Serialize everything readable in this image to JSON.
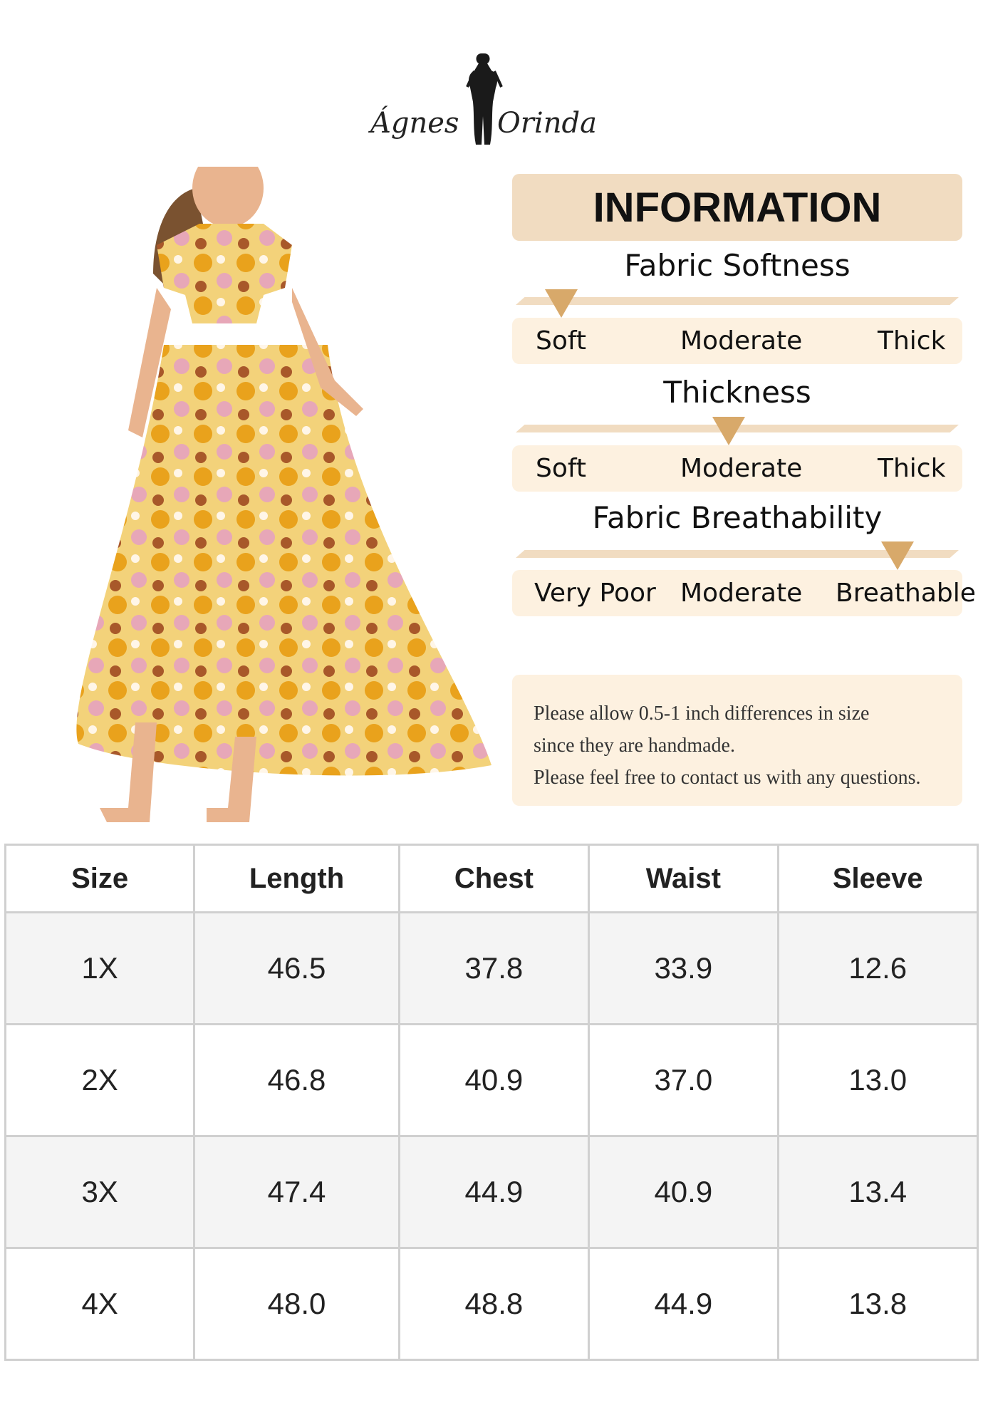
{
  "brand": {
    "left": "Ágnes",
    "right": "Orinda"
  },
  "info": {
    "title": "INFORMATION",
    "sections": [
      {
        "title": "Fabric Softness",
        "labels": [
          "Soft",
          "Moderate",
          "Thick"
        ],
        "selected": "Soft",
        "level": 0
      },
      {
        "title": "Thickness",
        "labels": [
          "Soft",
          "Moderate",
          "Thick"
        ],
        "selected": "Moderate",
        "level": 0.5
      },
      {
        "title": "Fabric Breathability",
        "labels": [
          "Very Poor",
          "Moderate",
          "Breathable"
        ],
        "selected": "Breathable",
        "level": 0.98
      }
    ],
    "note": [
      "Please allow 0.5-1 inch differences in size",
      "since they are handmade.",
      "Please feel free to contact us with any questions."
    ]
  },
  "colors": {
    "accent": "#d8a96a",
    "panel": "#f1dcc1",
    "panel_light": "#fdf1e0"
  },
  "size_table": {
    "headers": [
      "Size",
      "Length",
      "Chest",
      "Waist",
      "Sleeve"
    ],
    "rows": [
      [
        "1X",
        "46.5",
        "37.8",
        "33.9",
        "12.6"
      ],
      [
        "2X",
        "46.8",
        "40.9",
        "37.0",
        "13.0"
      ],
      [
        "3X",
        "47.4",
        "44.9",
        "40.9",
        "13.4"
      ],
      [
        "4X",
        "48.0",
        "48.8",
        "44.9",
        "13.8"
      ]
    ]
  }
}
